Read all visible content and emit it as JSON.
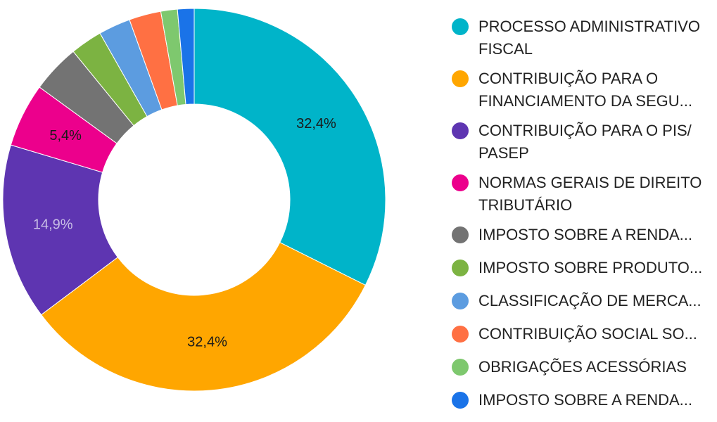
{
  "chart_data": {
    "type": "pie",
    "donut": true,
    "legend_position": "right",
    "slices": [
      {
        "label": "PROCESSO ADMINISTRATIVO\nFISCAL",
        "value": 32.4,
        "value_label": "32,4%",
        "color": "#00b4c9"
      },
      {
        "label": "CONTRIBUIÇÃO PARA O\nFINANCIAMENTO DA SEGU...",
        "value": 32.4,
        "value_label": "32,4%",
        "color": "#ffa600"
      },
      {
        "label": "CONTRIBUIÇÃO PARA O PIS/\nPASEP",
        "value": 14.9,
        "value_label": "14,9%",
        "color": "#5e35b1"
      },
      {
        "label": "NORMAS GERAIS DE DIREITO\nTRIBUTÁRIO",
        "value": 5.4,
        "value_label": "5,4%",
        "color": "#ec008c"
      },
      {
        "label": "IMPOSTO SOBRE A RENDA...",
        "value": 4.1,
        "value_label": "",
        "color": "#737373"
      },
      {
        "label": "IMPOSTO SOBRE PRODUTO...",
        "value": 2.7,
        "value_label": "",
        "color": "#7cb342"
      },
      {
        "label": "CLASSIFICAÇÃO DE MERCA...",
        "value": 2.7,
        "value_label": "",
        "color": "#5c9ce0"
      },
      {
        "label": "CONTRIBUIÇÃO SOCIAL SO...",
        "value": 2.7,
        "value_label": "",
        "color": "#ff7043"
      },
      {
        "label": "OBRIGAÇÕES ACESSÓRIAS",
        "value": 1.4,
        "value_label": "",
        "color": "#7ec86e"
      },
      {
        "label": "IMPOSTO SOBRE A RENDA...",
        "value": 1.4,
        "value_label": "",
        "color": "#1a73e8"
      }
    ]
  }
}
